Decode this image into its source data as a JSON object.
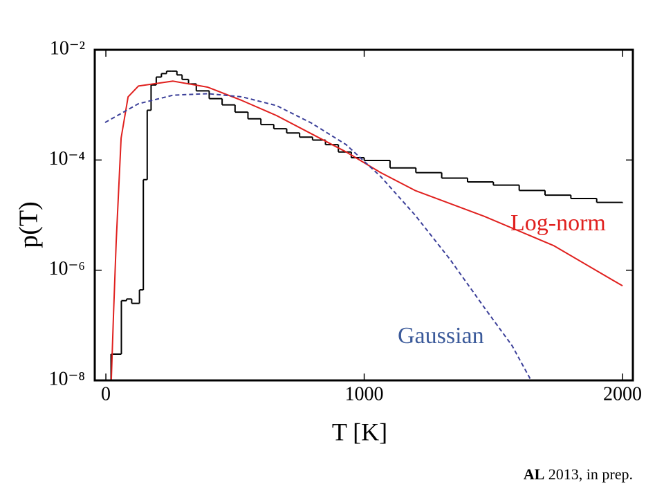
{
  "chart_data": {
    "type": "line",
    "xlabel": "T [K]",
    "ylabel": "p(T)",
    "xlim": [
      -43,
      2040
    ],
    "ylim": [
      1e-08,
      0.01
    ],
    "log_y": true,
    "xticks": [
      0,
      1000,
      2000
    ],
    "yticks": [
      {
        "value": 0.01,
        "label": "10⁻²"
      },
      {
        "value": 0.0001,
        "label": "10⁻⁴"
      },
      {
        "value": 1e-06,
        "label": "10⁻⁶"
      },
      {
        "value": 1e-08,
        "label": "10⁻⁸"
      }
    ],
    "histogram": {
      "color": "#000000",
      "bins": [
        20,
        60,
        80,
        100,
        130,
        145,
        160,
        175,
        195,
        215,
        235,
        255,
        275,
        295,
        320,
        350,
        400,
        450,
        500,
        550,
        600,
        650,
        700,
        750,
        800,
        850,
        900,
        950,
        1000,
        1100,
        1200,
        1300,
        1400,
        1500,
        1600,
        1700,
        1800,
        1900,
        2000
      ],
      "counts": [
        3e-08,
        2.8e-07,
        3e-07,
        2.5e-07,
        4.4e-07,
        4.4e-05,
        0.0008,
        0.0023,
        0.0032,
        0.0037,
        0.0041,
        0.0041,
        0.0035,
        0.0029,
        0.0024,
        0.0018,
        0.0013,
        0.001,
        0.00074,
        0.00056,
        0.00044,
        0.00037,
        0.00031,
        0.00026,
        0.00023,
        0.00019,
        0.00014,
        0.00011,
        9.8e-05,
        7.2e-05,
        5.9e-05,
        4.7e-05,
        4e-05,
        3.5e-05,
        2.8e-05,
        2.3e-05,
        2e-05,
        1.7e-05
      ]
    },
    "series": [
      {
        "name": "Log-norm",
        "color": "#e0201e",
        "dash": false,
        "x": [
          21,
          30,
          40,
          59,
          86,
          126,
          260,
          394,
          527,
          661,
          795,
          930,
          1064,
          1197,
          1465,
          1733,
          2000
        ],
        "values": [
          1e-08,
          1.8e-07,
          3.3e-06,
          0.00025,
          0.0014,
          0.0022,
          0.0027,
          0.0021,
          0.0012,
          0.00064,
          0.0003,
          0.00014,
          5.9e-05,
          2.8e-05,
          9.5e-06,
          2.8e-06,
          5.2e-07
        ]
      },
      {
        "name": "Gaussian",
        "color": "#3b3f99",
        "dash": true,
        "x": [
          -3,
          126,
          260,
          394,
          527,
          661,
          795,
          930,
          1064,
          1197,
          1331,
          1465,
          1572,
          1644
        ],
        "values": [
          0.00048,
          0.00105,
          0.0015,
          0.0016,
          0.0014,
          0.00097,
          0.00047,
          0.00019,
          5e-05,
          1e-05,
          1.6e-06,
          2.1e-07,
          4.3e-08,
          1.04e-08
        ]
      }
    ],
    "credit_bold": "AL",
    "credit_rest": " 2013, in prep."
  }
}
